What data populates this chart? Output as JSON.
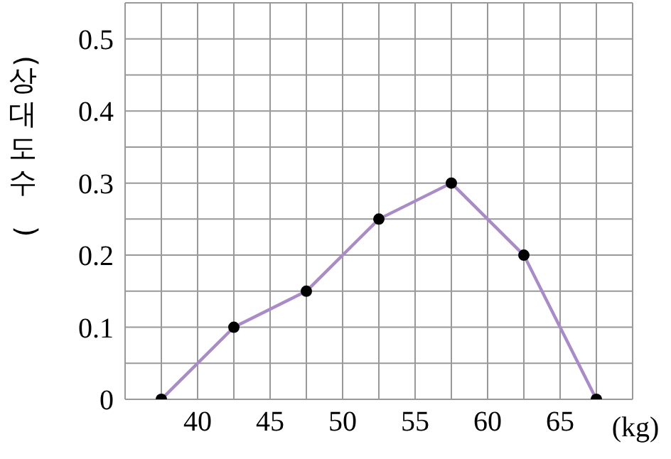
{
  "chart_data": {
    "type": "line",
    "xlabel": "(kg)",
    "ylabel": "(상대도수)",
    "x": [
      37.5,
      42.5,
      47.5,
      52.5,
      57.5,
      62.5,
      67.5
    ],
    "series": [
      {
        "color": "#a98bc6",
        "values": [
          0,
          0.1,
          0.15,
          0.25,
          0.3,
          0.2,
          0
        ]
      }
    ],
    "xlim": [
      35,
      70
    ],
    "xticks": [
      {
        "value": 35,
        "label": null
      },
      {
        "value": 37.5,
        "label": null
      },
      40,
      {
        "value": 42.5,
        "label": null
      },
      45,
      {
        "value": 47.5,
        "label": null
      },
      50,
      {
        "value": 52.5,
        "label": null
      },
      55,
      {
        "value": 57.5,
        "label": null
      },
      60,
      {
        "value": 62.5,
        "label": null
      },
      65,
      {
        "value": 67.5,
        "label": null
      },
      {
        "value": 70,
        "label": null
      }
    ],
    "ylim": [
      0,
      0.55
    ],
    "yticks": [
      0,
      {
        "value": 0.05,
        "label": null
      },
      0.1,
      {
        "value": 0.15,
        "label": null
      },
      0.2,
      {
        "value": 0.25,
        "label": null
      },
      0.3,
      {
        "value": 0.35,
        "label": null
      },
      0.4,
      {
        "value": 0.45,
        "label": null
      },
      0.5,
      {
        "value": 0.55,
        "label": null
      }
    ],
    "grid": true,
    "marker": "circle",
    "line_style": "solid"
  }
}
